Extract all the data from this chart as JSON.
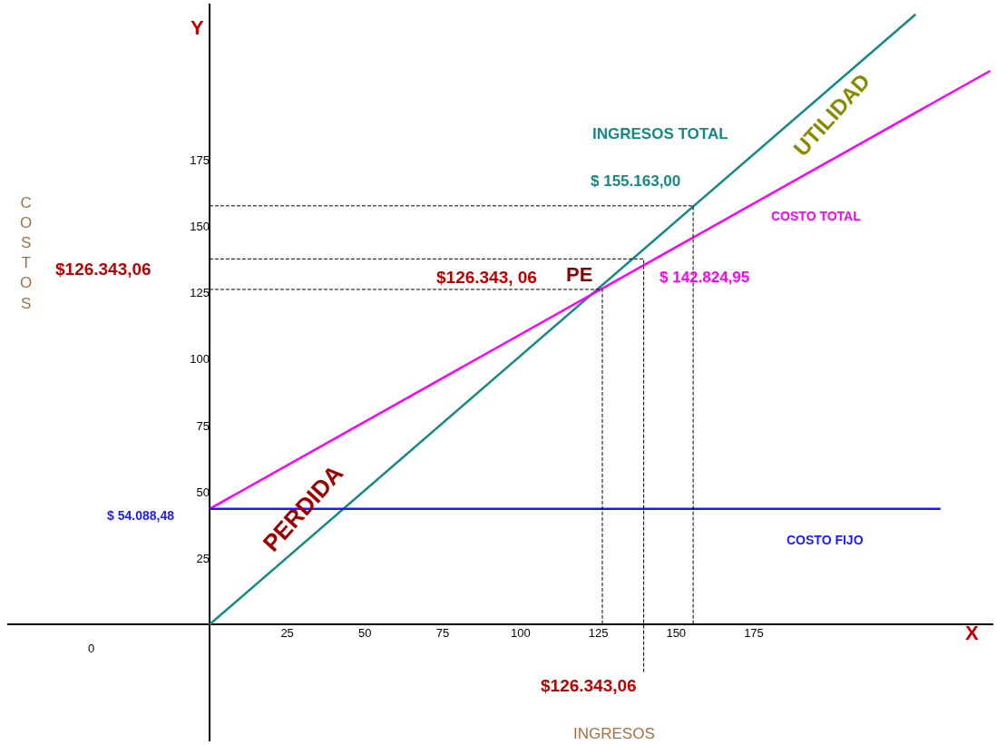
{
  "chart_data": {
    "type": "line",
    "xlabel": "INGRESOS",
    "ylabel": "COSTOS",
    "xlim": [
      -65,
      252
    ],
    "ylim": [
      -44,
      234
    ],
    "xticks": [
      25,
      50,
      75,
      100,
      125,
      150,
      175
    ],
    "yticks": [
      25,
      50,
      75,
      100,
      125,
      150,
      175
    ],
    "marker": "none",
    "series": [
      {
        "color": "#138a84",
        "x": [
          0,
          227
        ],
        "values": [
          0,
          230
        ]
      },
      {
        "color": "#ff00ff",
        "x": [
          0,
          251
        ],
        "values": [
          43.6,
          208.7
        ]
      },
      {
        "color": "#1a1aff",
        "x": [
          0,
          235
        ],
        "values": [
          43.6,
          43.6
        ]
      },
      {
        "color": "#000000",
        "line_style": "dashed",
        "x": [
          0,
          126.3,
          126.3
        ],
        "values": [
          126.3,
          126.3,
          0
        ]
      },
      {
        "color": "#000000",
        "line_style": "dashed",
        "x": [
          0,
          139.6,
          139.6
        ],
        "values": [
          137.8,
          137.8,
          -18
        ]
      },
      {
        "color": "#000000",
        "line_style": "dashed",
        "x": [
          0,
          155.5,
          155.5
        ],
        "values": [
          157.8,
          157.8,
          0
        ]
      }
    ],
    "annotations": [
      "INGRESOS TOTAL",
      "$ 155.163,00",
      "UTILIDAD",
      "COSTO TOTAL",
      "$126.343, 06",
      "PE",
      "$ 142.824,95",
      "$126.343,06",
      "$ 54.088,48",
      "PERDIDA",
      "COSTO FIJO",
      "$126.343,06",
      "Y",
      "X",
      "0"
    ]
  }
}
